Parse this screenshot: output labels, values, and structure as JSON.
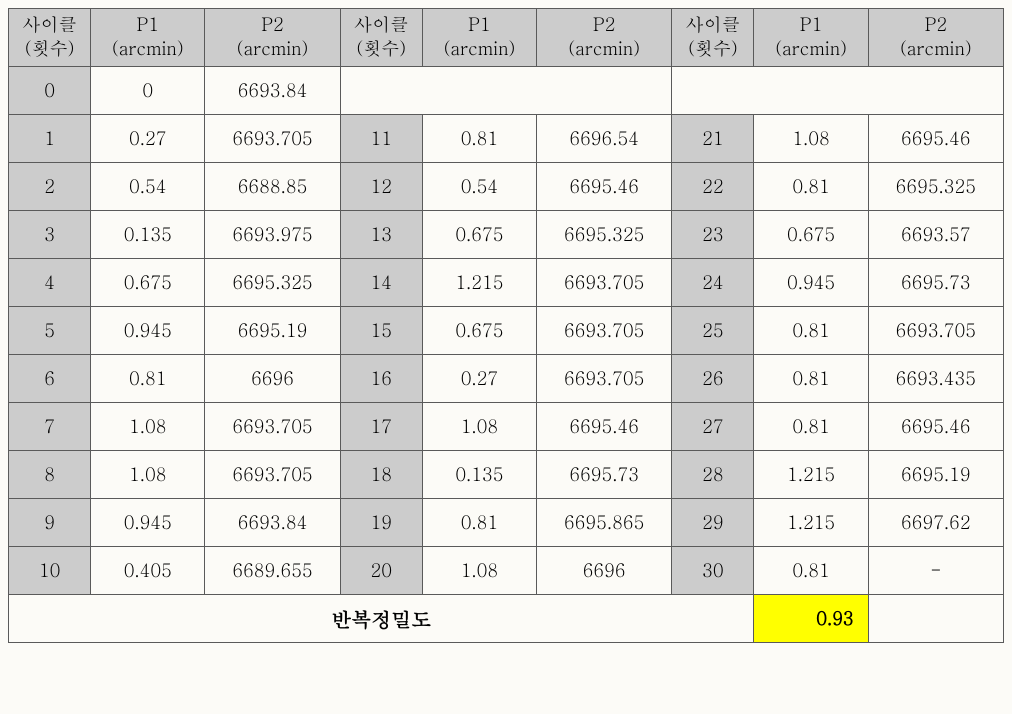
{
  "header": {
    "cycle_l1": "사이클",
    "cycle_l2": "(횟수)",
    "p1_l1": "P1",
    "p1_l2": "(arcmin)",
    "p2_l1": "P2",
    "p2_l2": "(arcmin)"
  },
  "colors": {
    "header_bg": "#cccccc",
    "cycle_bg": "#cccccc",
    "highlight_bg": "#ffff00",
    "border": "#5a5a5a",
    "page_bg": "#fcfbf7"
  },
  "rows": [
    {
      "c0": "0",
      "p1_0": "0",
      "p2_0": "6693.84",
      "c1": "",
      "p1_1": "",
      "p2_1": "",
      "c2": "",
      "p1_2": "",
      "p2_2": ""
    },
    {
      "c0": "1",
      "p1_0": "0.27",
      "p2_0": "6693.705",
      "c1": "11",
      "p1_1": "0.81",
      "p2_1": "6696.54",
      "c2": "21",
      "p1_2": "1.08",
      "p2_2": "6695.46"
    },
    {
      "c0": "2",
      "p1_0": "0.54",
      "p2_0": "6688.85",
      "c1": "12",
      "p1_1": "0.54",
      "p2_1": "6695.46",
      "c2": "22",
      "p1_2": "0.81",
      "p2_2": "6695.325"
    },
    {
      "c0": "3",
      "p1_0": "0.135",
      "p2_0": "6693.975",
      "c1": "13",
      "p1_1": "0.675",
      "p2_1": "6695.325",
      "c2": "23",
      "p1_2": "0.675",
      "p2_2": "6693.57"
    },
    {
      "c0": "4",
      "p1_0": "0.675",
      "p2_0": "6695.325",
      "c1": "14",
      "p1_1": "1.215",
      "p2_1": "6693.705",
      "c2": "24",
      "p1_2": "0.945",
      "p2_2": "6695.73"
    },
    {
      "c0": "5",
      "p1_0": "0.945",
      "p2_0": "6695.19",
      "c1": "15",
      "p1_1": "0.675",
      "p2_1": "6693.705",
      "c2": "25",
      "p1_2": "0.81",
      "p2_2": "6693.705"
    },
    {
      "c0": "6",
      "p1_0": "0.81",
      "p2_0": "6696",
      "c1": "16",
      "p1_1": "0.27",
      "p2_1": "6693.705",
      "c2": "26",
      "p1_2": "0.81",
      "p2_2": "6693.435"
    },
    {
      "c0": "7",
      "p1_0": "1.08",
      "p2_0": "6693.705",
      "c1": "17",
      "p1_1": "1.08",
      "p2_1": "6695.46",
      "c2": "27",
      "p1_2": "0.81",
      "p2_2": "6695.46"
    },
    {
      "c0": "8",
      "p1_0": "1.08",
      "p2_0": "6693.705",
      "c1": "18",
      "p1_1": "0.135",
      "p2_1": "6695.73",
      "c2": "28",
      "p1_2": "1.215",
      "p2_2": "6695.19"
    },
    {
      "c0": "9",
      "p1_0": "0.945",
      "p2_0": "6693.84",
      "c1": "19",
      "p1_1": "0.81",
      "p2_1": "6695.865",
      "c2": "29",
      "p1_2": "1.215",
      "p2_2": "6697.62"
    },
    {
      "c0": "10",
      "p1_0": "0.405",
      "p2_0": "6689.655",
      "c1": "20",
      "p1_1": "1.08",
      "p2_1": "6696",
      "c2": "30",
      "p1_2": "0.81",
      "p2_2": "-"
    }
  ],
  "footer": {
    "label": "반복정밀도",
    "value": "0.93"
  }
}
